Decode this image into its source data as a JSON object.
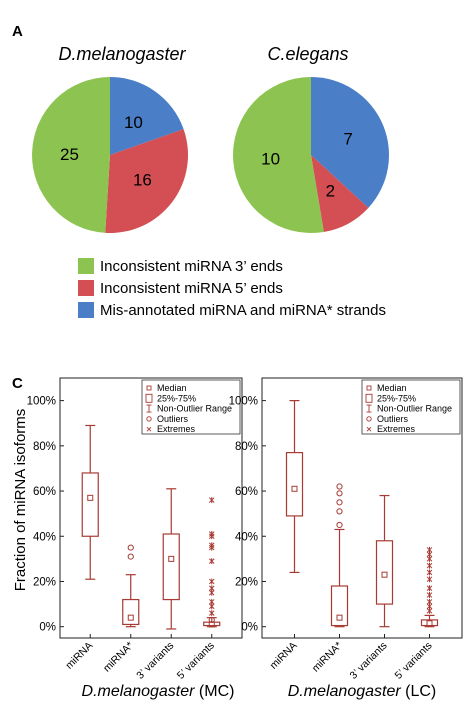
{
  "panels": {
    "a": "A",
    "c": "C"
  },
  "chart_data": [
    {
      "type": "pie",
      "title": "D.melanogaster",
      "categories": [
        "Inconsistent miRNA 3’ ends",
        "Inconsistent miRNA 5’ ends",
        "Mis-annotated miRNA and miRNA* strands"
      ],
      "values": [
        25,
        16,
        10
      ],
      "colors": [
        "#8dc451",
        "#d44f54",
        "#4a7fc7"
      ]
    },
    {
      "type": "pie",
      "title": "C.elegans",
      "categories": [
        "Inconsistent miRNA 3’ ends",
        "Inconsistent miRNA 5’ ends",
        "Mis-annotated miRNA and miRNA* strands"
      ],
      "values": [
        10,
        2,
        7
      ],
      "colors": [
        "#8dc451",
        "#d44f54",
        "#4a7fc7"
      ]
    },
    {
      "type": "box",
      "species": "D.melanogaster",
      "condition": "(MC)",
      "ylabel": "Fraction of miRNA isoforms",
      "ylim": [
        -5,
        110
      ],
      "yticks": [
        "0%",
        "20%",
        "40%",
        "60%",
        "80%",
        "100%"
      ],
      "categories": [
        "miRNA",
        "miRNA*",
        "3’ variants",
        "5’ variants"
      ],
      "boxes": [
        {
          "min": 21,
          "q1": 40,
          "median": 57,
          "q3": 68,
          "max": 89,
          "outliers": [],
          "extremes": []
        },
        {
          "min": 0,
          "q1": 1,
          "median": 4,
          "q3": 12,
          "max": 23,
          "outliers": [
            31,
            35
          ],
          "extremes": []
        },
        {
          "min": -1,
          "q1": 12,
          "median": 30,
          "q3": 41,
          "max": 61,
          "outliers": [],
          "extremes": []
        },
        {
          "min": 0,
          "q1": 0.5,
          "median": 1,
          "q3": 2,
          "max": 4,
          "outliers": [
            3
          ],
          "extremes": [
            6,
            9,
            11,
            15,
            17,
            20,
            29,
            35,
            36,
            40,
            41,
            56
          ]
        }
      ],
      "legend": [
        "Median",
        "25%-75%",
        "Non-Outlier Range",
        "Outliers",
        "Extremes"
      ]
    },
    {
      "type": "box",
      "species": "D.melanogaster",
      "condition": "(LC)",
      "ylim": [
        -5,
        110
      ],
      "yticks": [
        "0%",
        "20%",
        "40%",
        "60%",
        "80%",
        "100%"
      ],
      "categories": [
        "miRNA",
        "miRNA*",
        "3’ variants",
        "5’ variants"
      ],
      "boxes": [
        {
          "min": 24,
          "q1": 49,
          "median": 61,
          "q3": 77,
          "max": 100,
          "outliers": [],
          "extremes": []
        },
        {
          "min": 0,
          "q1": 0.5,
          "median": 4,
          "q3": 18,
          "max": 43,
          "outliers": [
            45,
            51,
            55,
            59,
            62
          ],
          "extremes": []
        },
        {
          "min": 0,
          "q1": 10,
          "median": 23,
          "q3": 38,
          "max": 58,
          "outliers": [],
          "extremes": []
        },
        {
          "min": 0,
          "q1": 0.5,
          "median": 1.5,
          "q3": 3,
          "max": 5,
          "outliers": [],
          "extremes": [
            7,
            9,
            11,
            14,
            17,
            21,
            24,
            27,
            30,
            32,
            34
          ]
        }
      ],
      "legend": [
        "Median",
        "25%-75%",
        "Non-Outlier Range",
        "Outliers",
        "Extremes"
      ]
    }
  ]
}
